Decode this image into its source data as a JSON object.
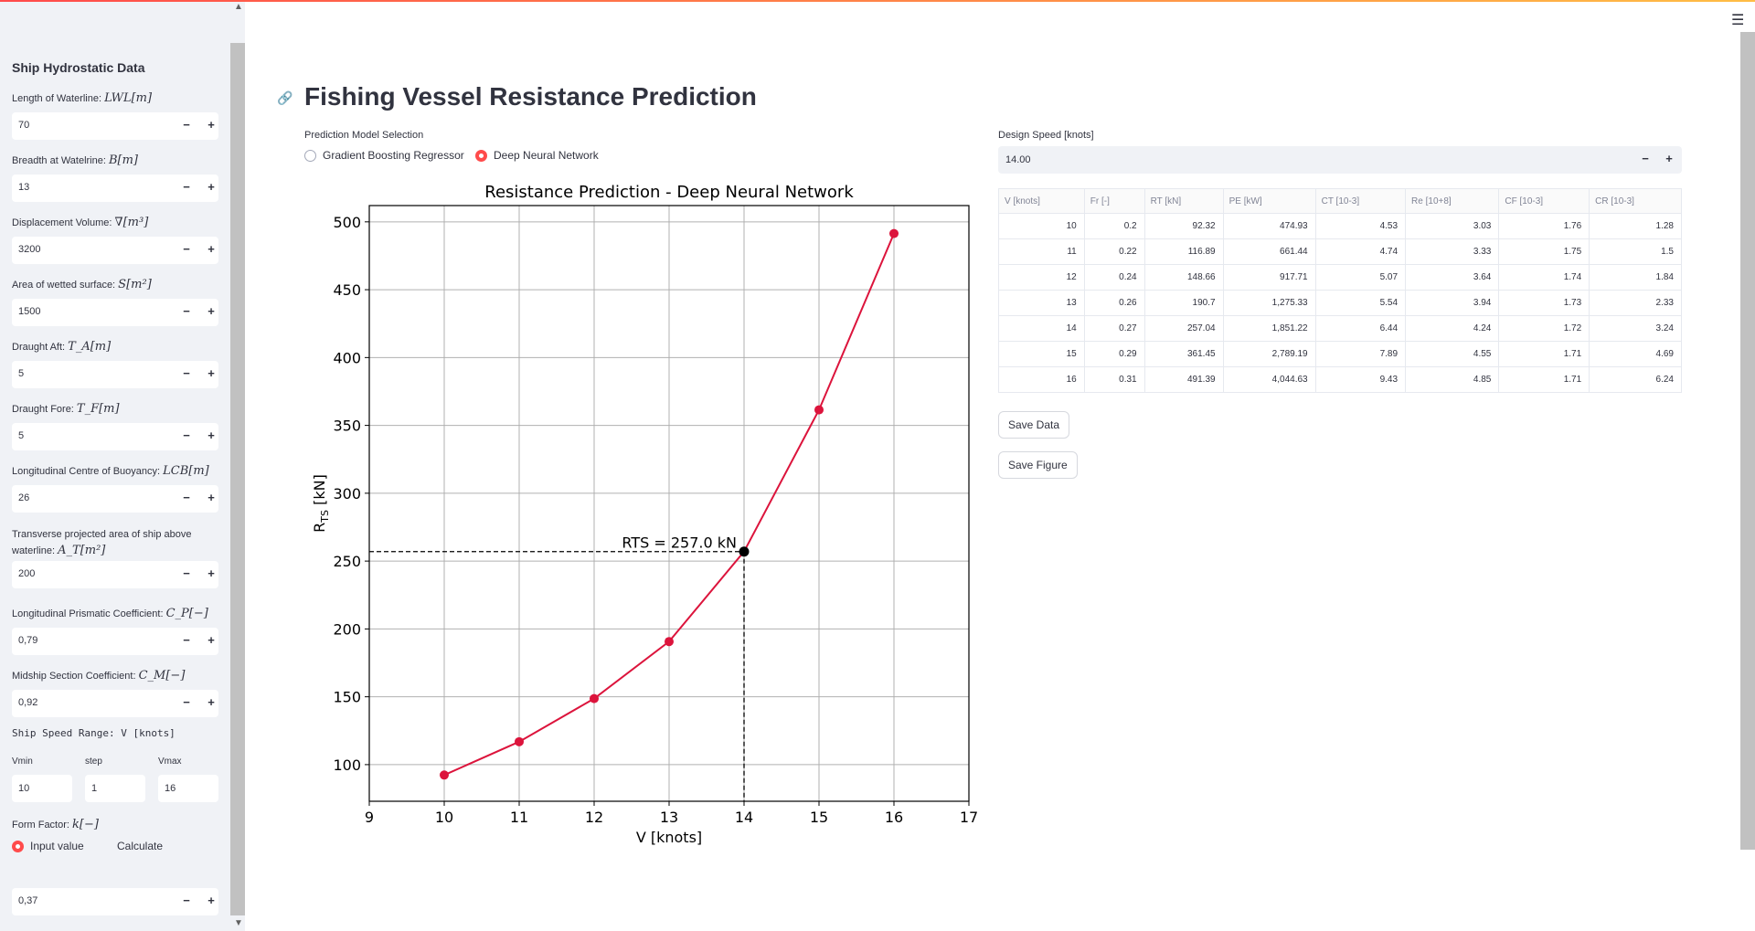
{
  "sidebar": {
    "title": "Ship Hydrostatic Data",
    "fields": [
      {
        "label": "Length of Waterline: ",
        "math": "LWL[m]",
        "value": "70"
      },
      {
        "label": "Breadth at Watelrine: ",
        "math": "B[m]",
        "value": "13"
      },
      {
        "label": "Displacement Volume: ",
        "math": "∇[m³]",
        "value": "3200"
      },
      {
        "label": "Area of wetted surface: ",
        "math": "S[m²]",
        "value": "1500"
      },
      {
        "label": "Draught Aft: ",
        "math": "T_A[m]",
        "value": "5"
      },
      {
        "label": "Draught Fore: ",
        "math": "T_F[m]",
        "value": "5"
      },
      {
        "label": "Longitudinal Centre of Buoyancy: ",
        "math": "LCB[m]",
        "value": "26"
      },
      {
        "label": "Transverse projected area of ship above",
        "label2": "waterline: ",
        "math": "A_T[m²]",
        "value": "200"
      },
      {
        "label": "Longitudinal Prismatic Coefficient: ",
        "math": "C_P[−]",
        "value": "0,79"
      },
      {
        "label": "Midship Section Coefficient: ",
        "math": "C_M[−]",
        "value": "0,92"
      }
    ],
    "speed_range_label": "Ship Speed Range: V [knots]",
    "vmin_label": "Vmin",
    "vmin": "10",
    "step_label": "step",
    "step": "1",
    "vmax_label": "Vmax",
    "vmax": "16",
    "form_factor_label": "Form Factor: ",
    "form_factor_math": "k[−]",
    "ff_options": [
      "Input value",
      "Calculate"
    ],
    "ff_value": "0,37",
    "minus": "−",
    "plus": "+"
  },
  "main": {
    "title": "Fishing Vessel Resistance Prediction",
    "model_label": "Prediction Model Selection",
    "models": [
      "Gradient Boosting Regressor",
      "Deep Neural Network"
    ],
    "selected_model": "Deep Neural Network",
    "design_speed_label": "Design Speed [knots]",
    "design_speed": "14.00",
    "save_data": "Save Data",
    "save_figure": "Save Figure",
    "link_icon": "link-icon",
    "menu_icon": "hamburger-menu-icon"
  },
  "table": {
    "headers": [
      "V [knots]",
      "Fr [-]",
      "RT [kN]",
      "PE [kW]",
      "CT [10-3]",
      "Re [10+8]",
      "CF [10-3]",
      "CR [10-3]"
    ],
    "rows": [
      [
        "10",
        "0.2",
        "92.32",
        "474.93",
        "4.53",
        "3.03",
        "1.76",
        "1.28"
      ],
      [
        "11",
        "0.22",
        "116.89",
        "661.44",
        "4.74",
        "3.33",
        "1.75",
        "1.5"
      ],
      [
        "12",
        "0.24",
        "148.66",
        "917.71",
        "5.07",
        "3.64",
        "1.74",
        "1.84"
      ],
      [
        "13",
        "0.26",
        "190.7",
        "1,275.33",
        "5.54",
        "3.94",
        "1.73",
        "2.33"
      ],
      [
        "14",
        "0.27",
        "257.04",
        "1,851.22",
        "6.44",
        "4.24",
        "1.72",
        "3.24"
      ],
      [
        "15",
        "0.29",
        "361.45",
        "2,789.19",
        "7.89",
        "4.55",
        "1.71",
        "4.69"
      ],
      [
        "16",
        "0.31",
        "491.39",
        "4,044.63",
        "9.43",
        "4.85",
        "1.71",
        "6.24"
      ]
    ]
  },
  "chart_data": {
    "type": "line",
    "title": "Resistance Prediction - Deep Neural Network",
    "xlabel": "V [knots]",
    "ylabel": "RTS [kN]",
    "x": [
      10,
      11,
      12,
      13,
      14,
      15,
      16
    ],
    "series": [
      {
        "values": [
          92.32,
          116.89,
          148.66,
          190.7,
          257.04,
          361.45,
          491.39
        ],
        "color": "#dc143c"
      }
    ],
    "xlim": [
      9,
      17
    ],
    "ylim": [
      73,
      512
    ],
    "xticks": [
      9,
      10,
      11,
      12,
      13,
      14,
      15,
      16,
      17
    ],
    "yticks": [
      100,
      150,
      200,
      250,
      300,
      350,
      400,
      450,
      500
    ],
    "grid": true,
    "design_point": {
      "x": 14,
      "y": 257.0
    },
    "annotation": "RTS = 257.0 kN"
  }
}
